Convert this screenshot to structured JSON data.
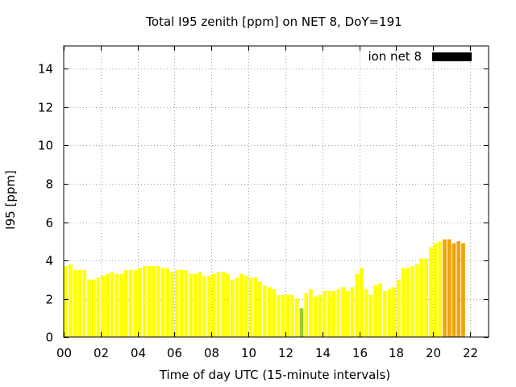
{
  "chart_data": {
    "type": "bar",
    "title": "Total I95 zenith [ppm] on NET 8, DoY=191",
    "xlabel": "Time of day UTC (15-minute intervals)",
    "ylabel": "I95 [ppm]",
    "xlim": [
      0,
      23
    ],
    "ylim": [
      0,
      15.2
    ],
    "x_ticks": [
      "00",
      "02",
      "04",
      "06",
      "08",
      "10",
      "12",
      "14",
      "16",
      "18",
      "20",
      "22"
    ],
    "x_tick_values": [
      0,
      2,
      4,
      6,
      8,
      10,
      12,
      14,
      16,
      18,
      20,
      22
    ],
    "y_ticks": [
      "0",
      "2",
      "4",
      "6",
      "8",
      "10",
      "12",
      "14"
    ],
    "y_tick_values": [
      0,
      2,
      4,
      6,
      8,
      10,
      12,
      14
    ],
    "grid": true,
    "legend": {
      "position": "top-right",
      "label": "ion net 8",
      "color": "#000000"
    },
    "interval_hours": 0.25,
    "x_start": 0,
    "values": [
      3.7,
      3.8,
      3.5,
      3.5,
      3.5,
      3.0,
      3.0,
      3.1,
      3.2,
      3.3,
      3.4,
      3.3,
      3.3,
      3.5,
      3.5,
      3.5,
      3.6,
      3.7,
      3.7,
      3.7,
      3.7,
      3.6,
      3.6,
      3.4,
      3.5,
      3.5,
      3.5,
      3.3,
      3.3,
      3.4,
      3.2,
      3.2,
      3.3,
      3.4,
      3.4,
      3.3,
      3.0,
      3.1,
      3.3,
      3.2,
      3.1,
      3.1,
      2.9,
      2.7,
      2.6,
      2.5,
      2.2,
      2.2,
      2.2,
      2.2,
      2.0,
      1.5,
      2.3,
      2.5,
      2.1,
      2.2,
      2.4,
      2.4,
      2.4,
      2.5,
      2.6,
      2.4,
      2.6,
      3.3,
      3.6,
      2.5,
      2.2,
      2.7,
      2.8,
      2.4,
      2.5,
      2.6,
      3.0,
      3.6,
      3.6,
      3.7,
      3.8,
      4.1,
      4.1,
      4.7,
      4.9,
      5.0,
      5.1,
      5.1,
      4.9,
      5.0,
      4.9
    ],
    "colors": {
      "bar_default": "#ffff00",
      "bar_low": "#99cc33",
      "bar_high": "#f0a30a",
      "grid": "#a0a0a0",
      "frame": "#000000"
    },
    "color_rules": {
      "low_below": 1.8,
      "high_from_x": 20.5
    }
  }
}
